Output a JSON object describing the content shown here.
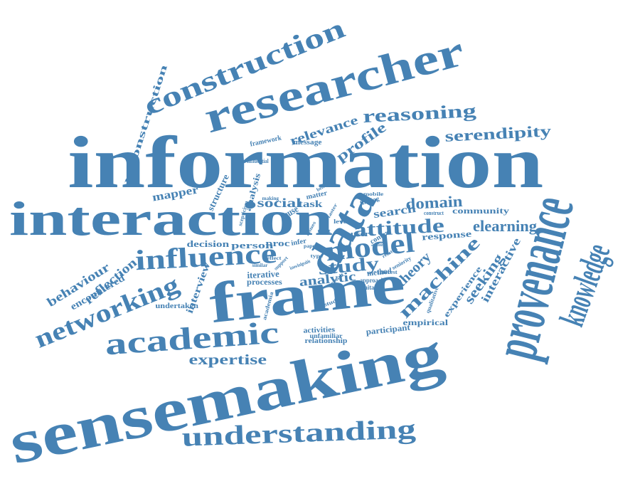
{
  "color": "#4682b4",
  "words": [
    "information",
    "sensemaking",
    "provenance",
    "frame",
    "interaction",
    "knowledge",
    "researcher",
    "construction",
    "data",
    "understanding",
    "academic",
    "networking",
    "influence",
    "model",
    "reasoning",
    "attitude",
    "elearning",
    "serendipity",
    "machine",
    "reconstruction",
    "relevance",
    "profile",
    "expertise",
    "behaviour",
    "reflection",
    "seeking",
    "theory",
    "social",
    "domain",
    "mapper",
    "study",
    "analytic",
    "interactive",
    "encountered",
    "experience",
    "community",
    "response",
    "search",
    "person",
    "decision",
    "iterative",
    "processes",
    "interview",
    "structure",
    "analysis",
    "task",
    "empirical",
    "participant",
    "activities",
    "relationship",
    "undertaken",
    "framework",
    "message",
    "influential",
    "method",
    "approach",
    "limitation",
    "user",
    "context",
    "proc",
    "infer",
    "reuse",
    "matter",
    "finding",
    "construct",
    "unfamiliar",
    "qualitative",
    "seniority",
    "interest",
    "academia",
    "studies",
    "scepticism",
    "mobile",
    "making",
    "level",
    "reflect",
    "related",
    "action",
    "type",
    "issues",
    "similar",
    "text",
    "result",
    "paper",
    "support",
    "faster",
    "believe",
    "knowledgeable"
  ]
}
